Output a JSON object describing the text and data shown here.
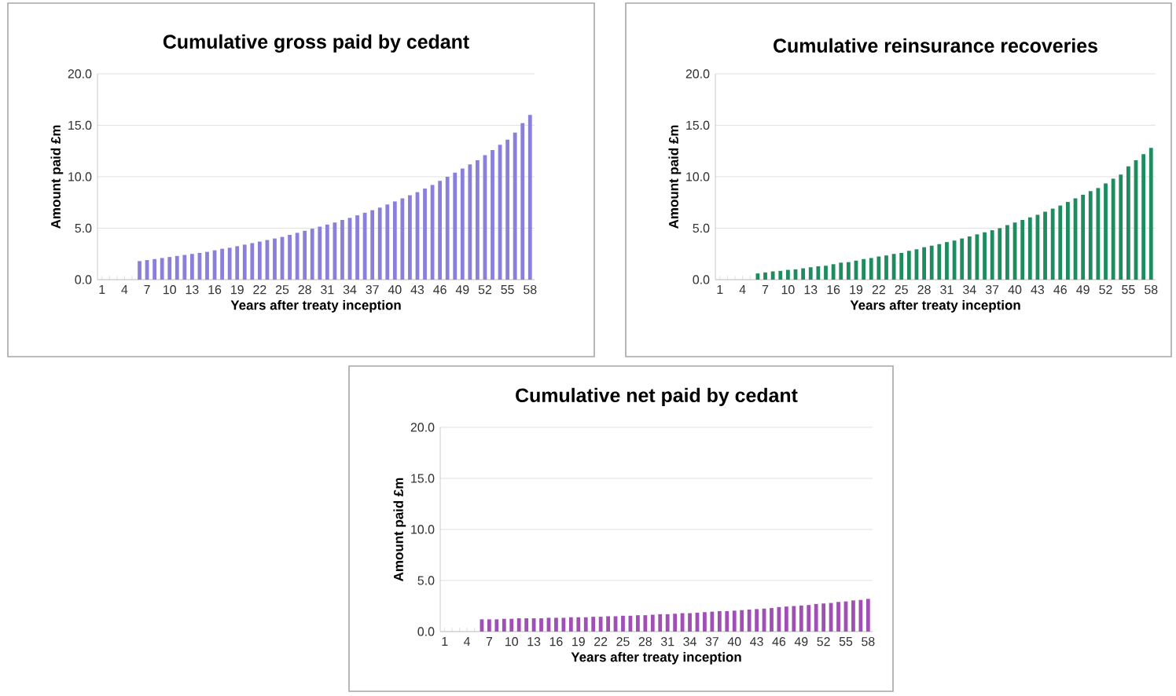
{
  "chart_data": [
    {
      "type": "bar",
      "title": "Cumulative gross paid by cedant",
      "xlabel": "Years after treaty inception",
      "ylabel": "Amount paid £m",
      "categories": [
        "1",
        null,
        null,
        "4",
        null,
        null,
        "7",
        null,
        null,
        "10",
        null,
        null,
        "13",
        null,
        null,
        "16",
        null,
        null,
        "19",
        null,
        null,
        "22",
        null,
        null,
        "25",
        null,
        null,
        "28",
        null,
        null,
        "31",
        null,
        null,
        "34",
        null,
        null,
        "37",
        null,
        null,
        "40",
        null,
        null,
        "43",
        null,
        null,
        "46",
        null,
        null,
        "49",
        null,
        null,
        "52",
        null,
        null,
        "55",
        null,
        null,
        "58"
      ],
      "values": [
        0,
        0,
        0,
        0,
        0,
        1.8,
        1.9,
        2.0,
        2.1,
        2.2,
        2.3,
        2.4,
        2.5,
        2.6,
        2.7,
        2.85,
        3.0,
        3.1,
        3.25,
        3.4,
        3.55,
        3.7,
        3.85,
        4.0,
        4.15,
        4.35,
        4.55,
        4.75,
        4.95,
        5.15,
        5.35,
        5.55,
        5.8,
        6.0,
        6.25,
        6.5,
        6.75,
        7.0,
        7.3,
        7.6,
        7.9,
        8.2,
        8.5,
        8.85,
        9.2,
        9.6,
        10.0,
        10.4,
        10.8,
        11.2,
        11.6,
        12.1,
        12.6,
        13.1,
        13.6,
        14.3,
        15.2,
        16.0
      ],
      "color": "#8a80dc",
      "ylim": [
        0,
        20
      ],
      "yticks": [
        {
          "value": 0,
          "label": "0.0"
        },
        {
          "value": 5,
          "label": "5.0"
        },
        {
          "value": 10,
          "label": "10.0"
        },
        {
          "value": 15,
          "label": "15.0"
        },
        {
          "value": 20,
          "label": "20.0"
        }
      ],
      "grid": "y"
    },
    {
      "type": "bar",
      "title": "Cumulative reinsurance recoveries",
      "xlabel": "Years after treaty inception",
      "ylabel": "Amount paid £m",
      "categories": [
        "1",
        null,
        null,
        "4",
        null,
        null,
        "7",
        null,
        null,
        "10",
        null,
        null,
        "13",
        null,
        null,
        "16",
        null,
        null,
        "19",
        null,
        null,
        "22",
        null,
        null,
        "25",
        null,
        null,
        "28",
        null,
        null,
        "31",
        null,
        null,
        "34",
        null,
        null,
        "37",
        null,
        null,
        "40",
        null,
        null,
        "43",
        null,
        null,
        "46",
        null,
        null,
        "49",
        null,
        null,
        "52",
        null,
        null,
        "55",
        null,
        null,
        "58"
      ],
      "values": [
        0,
        0,
        0,
        0,
        0,
        0.6,
        0.7,
        0.8,
        0.85,
        0.95,
        1.0,
        1.1,
        1.2,
        1.3,
        1.35,
        1.5,
        1.65,
        1.7,
        1.85,
        2.0,
        2.1,
        2.25,
        2.35,
        2.5,
        2.6,
        2.8,
        2.95,
        3.15,
        3.3,
        3.45,
        3.65,
        3.8,
        4.0,
        4.2,
        4.4,
        4.6,
        4.8,
        5.0,
        5.3,
        5.55,
        5.8,
        6.05,
        6.3,
        6.6,
        6.9,
        7.2,
        7.55,
        7.9,
        8.25,
        8.6,
        8.9,
        9.35,
        9.8,
        10.2,
        11.0,
        11.6,
        12.2,
        12.8
      ],
      "color": "#1e8c5e",
      "ylim": [
        0,
        20
      ],
      "yticks": [
        {
          "value": 0,
          "label": "0.0"
        },
        {
          "value": 5,
          "label": "5.0"
        },
        {
          "value": 10,
          "label": "10.0"
        },
        {
          "value": 15,
          "label": "15.0"
        },
        {
          "value": 20,
          "label": "20.0"
        }
      ],
      "grid": "y"
    },
    {
      "type": "bar",
      "title": "Cumulative net paid by cedant",
      "xlabel": "Years after treaty inception",
      "ylabel": "Amount paid £m",
      "categories": [
        "1",
        null,
        null,
        "4",
        null,
        null,
        "7",
        null,
        null,
        "10",
        null,
        null,
        "13",
        null,
        null,
        "16",
        null,
        null,
        "19",
        null,
        null,
        "22",
        null,
        null,
        "25",
        null,
        null,
        "28",
        null,
        null,
        "31",
        null,
        null,
        "34",
        null,
        null,
        "37",
        null,
        null,
        "40",
        null,
        null,
        "43",
        null,
        null,
        "46",
        null,
        null,
        "49",
        null,
        null,
        "52",
        null,
        null,
        "55",
        null,
        null,
        "58"
      ],
      "values": [
        0,
        0,
        0,
        0,
        0,
        1.2,
        1.2,
        1.2,
        1.25,
        1.25,
        1.3,
        1.3,
        1.3,
        1.3,
        1.35,
        1.35,
        1.35,
        1.4,
        1.4,
        1.4,
        1.45,
        1.45,
        1.5,
        1.5,
        1.55,
        1.55,
        1.6,
        1.6,
        1.65,
        1.7,
        1.7,
        1.75,
        1.8,
        1.8,
        1.85,
        1.9,
        1.95,
        2.0,
        2.0,
        2.05,
        2.1,
        2.15,
        2.2,
        2.25,
        2.3,
        2.4,
        2.45,
        2.5,
        2.55,
        2.6,
        2.7,
        2.75,
        2.8,
        2.9,
        2.95,
        3.05,
        3.1,
        3.2
      ],
      "color": "#a050b4",
      "ylim": [
        0,
        20
      ],
      "yticks": [
        {
          "value": 0,
          "label": "0.0"
        },
        {
          "value": 5,
          "label": "5.0"
        },
        {
          "value": 10,
          "label": "10.0"
        },
        {
          "value": 15,
          "label": "15.0"
        },
        {
          "value": 20,
          "label": "20.0"
        }
      ],
      "grid": "y"
    }
  ]
}
